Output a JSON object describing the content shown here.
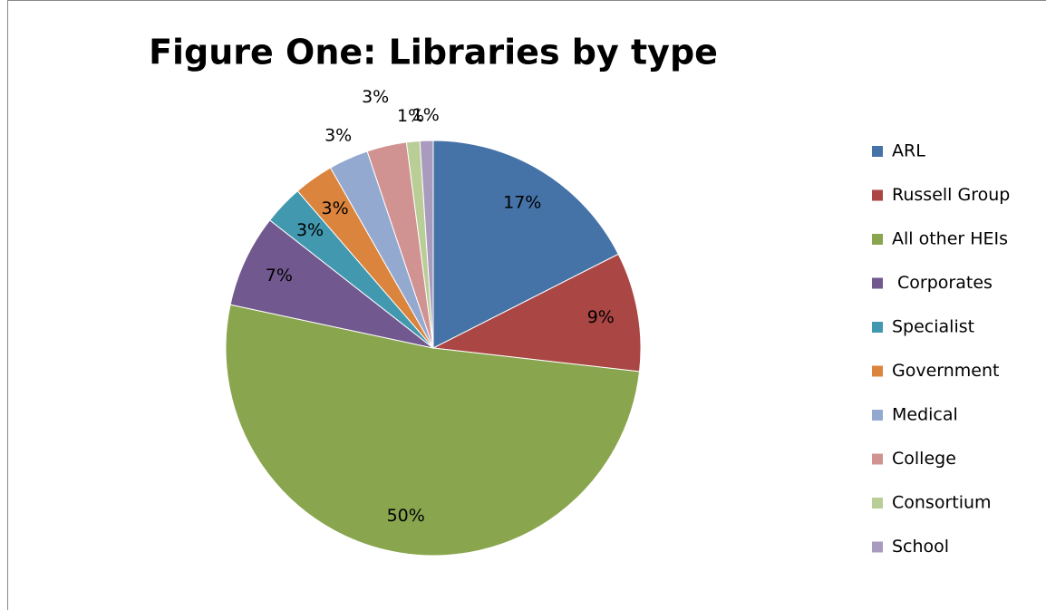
{
  "chart_data": {
    "type": "pie",
    "title": "Figure One: Libraries by type",
    "categories": [
      "ARL",
      "Russell Group",
      "All other HEIs",
      " Corporates",
      "Specialist",
      "Government",
      "Medical",
      "College",
      "Consortium",
      "School"
    ],
    "values": [
      17,
      9,
      50,
      7,
      3,
      3,
      3,
      3,
      1,
      1
    ],
    "value_labels": [
      "17%",
      "9%",
      "50%",
      "7%",
      "3%",
      "3%",
      "3%",
      "3%",
      "1%",
      "1%"
    ],
    "colors": [
      "#4572a7",
      "#aa4643",
      "#89a54e",
      "#71588f",
      "#4198af",
      "#db843d",
      "#93a9cf",
      "#d19392",
      "#b9cd96",
      "#a99bbd"
    ],
    "legend": "right"
  }
}
